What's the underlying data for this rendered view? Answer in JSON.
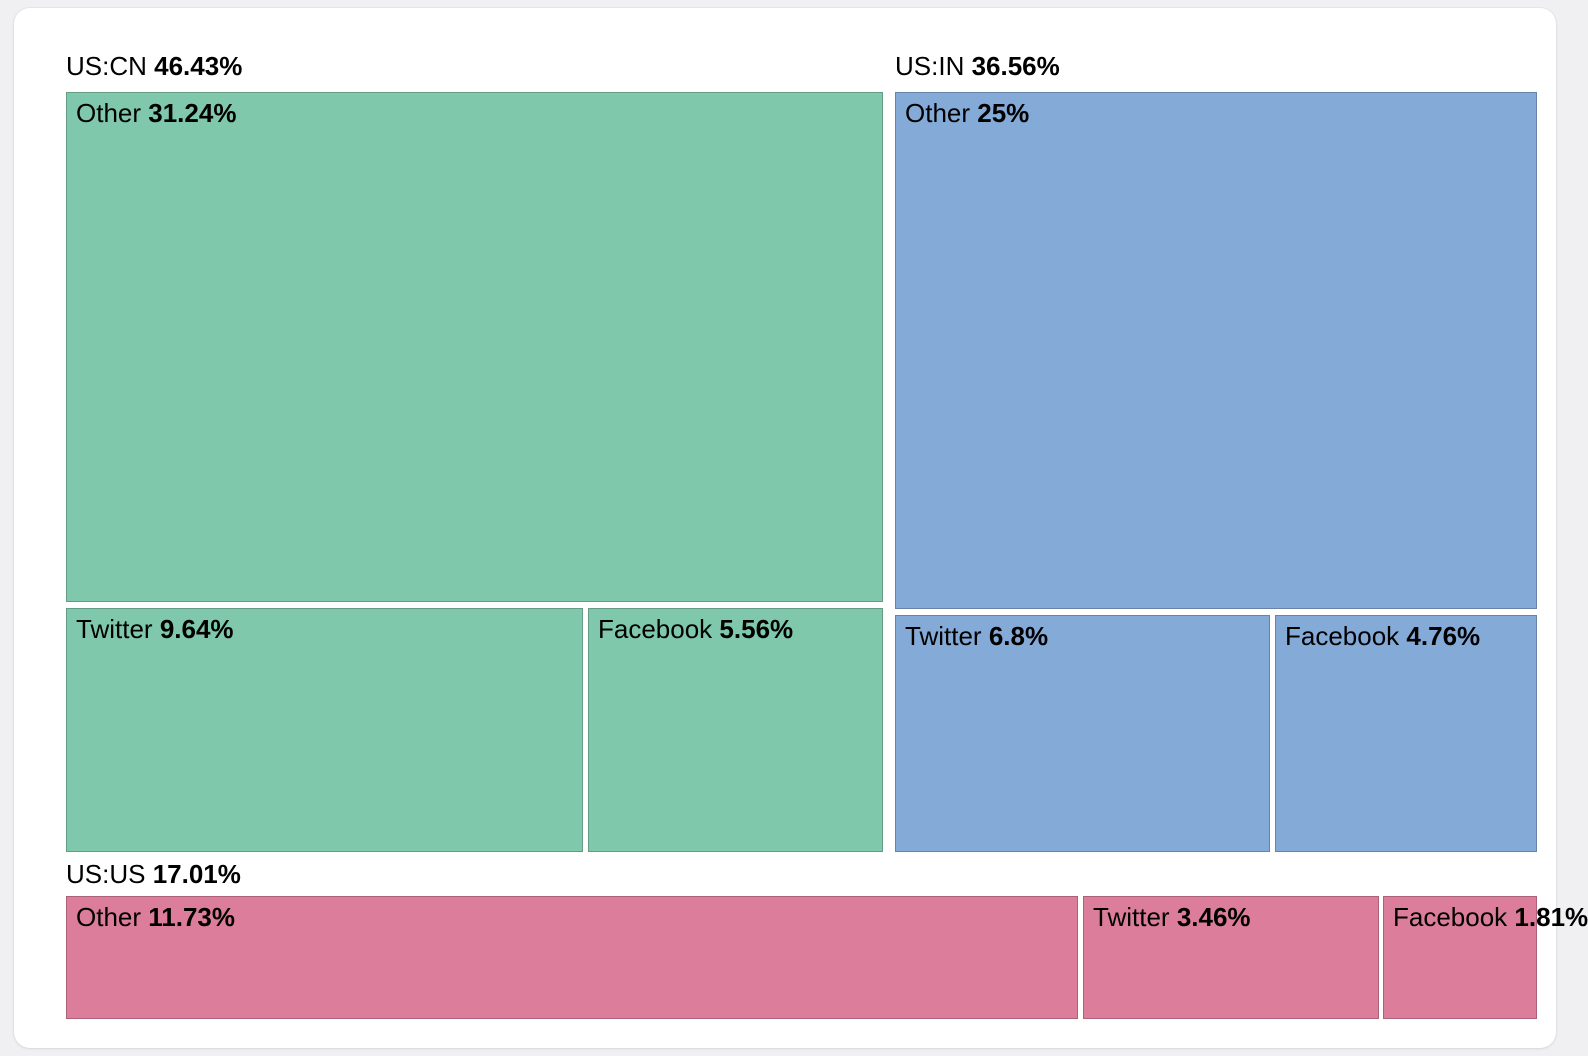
{
  "page": {
    "background_color": "#f0f0f2",
    "card_background_color": "#ffffff"
  },
  "chart_data": {
    "type": "treemap",
    "value_unit": "%",
    "legend_position": "none",
    "groups": [
      {
        "label": "US:CN",
        "value": 46.43,
        "value_label": "46.43%",
        "color": "#7fc8ab",
        "children": [
          {
            "name": "Other",
            "value": 31.24,
            "value_label": "31.24%"
          },
          {
            "name": "Twitter",
            "value": 9.64,
            "value_label": "9.64%"
          },
          {
            "name": "Facebook",
            "value": 5.56,
            "value_label": "5.56%"
          }
        ]
      },
      {
        "label": "US:IN",
        "value": 36.56,
        "value_label": "36.56%",
        "color": "#84aad8",
        "children": [
          {
            "name": "Other",
            "value": 25,
            "value_label": "25%"
          },
          {
            "name": "Twitter",
            "value": 6.8,
            "value_label": "6.8%"
          },
          {
            "name": "Facebook",
            "value": 4.76,
            "value_label": "4.76%"
          }
        ]
      },
      {
        "label": "US:US",
        "value": 17.01,
        "value_label": "17.01%",
        "color": "#dc7d9b",
        "children": [
          {
            "name": "Other",
            "value": 11.73,
            "value_label": "11.73%"
          },
          {
            "name": "Twitter",
            "value": 3.46,
            "value_label": "3.46%"
          },
          {
            "name": "Facebook",
            "value": 1.81,
            "value_label": "1.81%"
          }
        ]
      }
    ]
  }
}
